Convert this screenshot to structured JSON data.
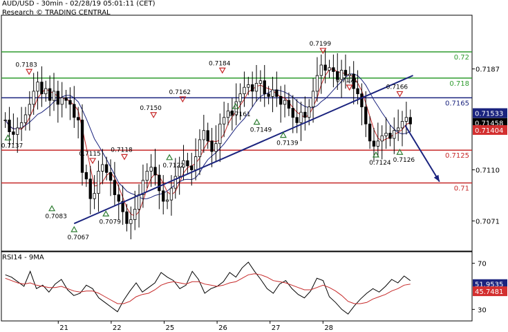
{
  "header": {
    "pair_line": "AUD/USD - 30min - 02/28/19 05:01:11 (CET)",
    "credit_line": "Research © TRADING CENTRAL"
  },
  "rsi_title": "RSI14 - 9MA",
  "chart_data": {
    "type": "line",
    "xlabel": "",
    "ylabel": "",
    "ylim": [
      0.7048,
      0.7228
    ],
    "x_ticks": [
      "21",
      "22",
      "25",
      "26",
      "27",
      "28"
    ],
    "y_ticks": [
      0.7187,
      0.711,
      0.7071
    ],
    "grid": false,
    "levels": [
      {
        "label": "0.72",
        "value": 0.72,
        "color": "#2e9b2e"
      },
      {
        "label": "0.718",
        "value": 0.718,
        "color": "#2e9b2e"
      },
      {
        "label": "0.7165",
        "value": 0.7165,
        "color": "#1a237e"
      },
      {
        "label": "0.7125",
        "value": 0.7125,
        "color": "#c62828"
      },
      {
        "label": "0.71",
        "value": 0.71,
        "color": "#c62828"
      }
    ],
    "price_badges": [
      {
        "label": "0.71533",
        "value": 0.71533,
        "color": "#1a237e"
      },
      {
        "label": "0.71458",
        "value": 0.71458,
        "color": "#000000"
      },
      {
        "label": "0.71404",
        "value": 0.71404,
        "color": "#d32f2f"
      }
    ],
    "swing_labels": [
      {
        "label": "0.7183",
        "x": 0.45,
        "y": 0.7183,
        "kind": "high"
      },
      {
        "label": "0.7137",
        "x": 0.05,
        "y": 0.7137,
        "kind": "low"
      },
      {
        "label": "0.7083",
        "x": 0.88,
        "y": 0.7083,
        "kind": "low"
      },
      {
        "label": "0.7067",
        "x": 1.3,
        "y": 0.7067,
        "kind": "low"
      },
      {
        "label": "0.7115",
        "x": 1.65,
        "y": 0.7115,
        "kind": "high"
      },
      {
        "label": "0.7079",
        "x": 1.9,
        "y": 0.7079,
        "kind": "low"
      },
      {
        "label": "0.7118",
        "x": 2.25,
        "y": 0.7118,
        "kind": "high"
      },
      {
        "label": "0.7150",
        "x": 2.8,
        "y": 0.715,
        "kind": "high"
      },
      {
        "label": "0.7122",
        "x": 3.1,
        "y": 0.7122,
        "kind": "low"
      },
      {
        "label": "0.7162",
        "x": 3.35,
        "y": 0.7162,
        "kind": "high"
      },
      {
        "label": "0.7184",
        "x": 4.1,
        "y": 0.7184,
        "kind": "high"
      },
      {
        "label": "0.7161",
        "x": 4.35,
        "y": 0.7161,
        "kind": "low"
      },
      {
        "label": "0.7149",
        "x": 4.75,
        "y": 0.7149,
        "kind": "low"
      },
      {
        "label": "0.7139",
        "x": 5.25,
        "y": 0.7139,
        "kind": "low"
      },
      {
        "label": "0.7199",
        "x": 6.0,
        "y": 0.7199,
        "kind": "high"
      },
      {
        "label": "0.7171",
        "x": 6.5,
        "y": 0.7171,
        "kind": "high"
      },
      {
        "label": "0.7166",
        "x": 7.45,
        "y": 0.7166,
        "kind": "high"
      },
      {
        "label": "0.7124",
        "x": 7.0,
        "y": 0.7124,
        "kind": "low"
      },
      {
        "label": "0.7126",
        "x": 7.45,
        "y": 0.7126,
        "kind": "low"
      }
    ],
    "trendline": [
      {
        "x": 1.3,
        "y": 0.7069
      },
      {
        "x": 7.7,
        "y": 0.7182
      }
    ],
    "forecast_arrow": [
      {
        "x": 7.55,
        "y": 0.7144
      },
      {
        "x": 8.2,
        "y": 0.7101
      }
    ],
    "x_range": [
      -0.1,
      8.75
    ],
    "x_tick_positions": [
      1.0,
      2.0,
      3.0,
      4.0,
      5.0,
      6.0
    ],
    "series": [
      {
        "type": "candlestick",
        "closes": [
          0.7148,
          0.7139,
          0.7137,
          0.7142,
          0.7146,
          0.7152,
          0.716,
          0.717,
          0.7177,
          0.7168,
          0.7172,
          0.7163,
          0.717,
          0.716,
          0.7165,
          0.7163,
          0.716,
          0.715,
          0.7148,
          0.7108,
          0.7103,
          0.7088,
          0.7092,
          0.7109,
          0.7114,
          0.7108,
          0.7102,
          0.7091,
          0.7086,
          0.7078,
          0.7069,
          0.7072,
          0.708,
          0.7091,
          0.7102,
          0.7109,
          0.7112,
          0.7106,
          0.7094,
          0.7086,
          0.7087,
          0.7096,
          0.7105,
          0.7112,
          0.7117,
          0.7113,
          0.711,
          0.712,
          0.7133,
          0.714,
          0.7132,
          0.7124,
          0.713,
          0.7145,
          0.715,
          0.7155,
          0.7152,
          0.7162,
          0.7168,
          0.7173,
          0.7175,
          0.717,
          0.7176,
          0.7178,
          0.7168,
          0.7166,
          0.7171,
          0.7166,
          0.716,
          0.7163,
          0.7157,
          0.715,
          0.7146,
          0.7154,
          0.715,
          0.7158,
          0.717,
          0.7182,
          0.719,
          0.7186,
          0.7188,
          0.7185,
          0.7179,
          0.7186,
          0.7182,
          0.7183,
          0.7172,
          0.7168,
          0.7158,
          0.7145,
          0.7132,
          0.7128,
          0.7132,
          0.7136,
          0.7138,
          0.7134,
          0.714,
          0.7142,
          0.7147,
          0.715,
          0.7145
        ],
        "x_start": 0.0,
        "x_end": 7.65
      },
      {
        "name": "",
        "type": "ma_fast",
        "color": "#c62828"
      },
      {
        "name": "",
        "type": "ma_slow",
        "color": "#1a237e"
      }
    ]
  },
  "rsi_chart": {
    "type": "line",
    "ylim": [
      20,
      80
    ],
    "y_ticks": [
      70,
      30
    ],
    "values": [
      60,
      58,
      54,
      50,
      63,
      48,
      51,
      45,
      52,
      56,
      47,
      42,
      44,
      51,
      48,
      40,
      36,
      32,
      28,
      38,
      46,
      53,
      45,
      49,
      53,
      62,
      58,
      55,
      48,
      51,
      63,
      56,
      44,
      48,
      50,
      54,
      62,
      58,
      66,
      71,
      63,
      56,
      48,
      44,
      52,
      55,
      48,
      43,
      40,
      46,
      57,
      55,
      41,
      36,
      30,
      26,
      33,
      39,
      44,
      48,
      45,
      50,
      56,
      53,
      59,
      55
    ],
    "ma_values": [
      57,
      55,
      53,
      52,
      53,
      51,
      50,
      49,
      49,
      50,
      48,
      46,
      45,
      46,
      46,
      44,
      41,
      38,
      35,
      35,
      37,
      41,
      43,
      44,
      47,
      51,
      53,
      54,
      53,
      52,
      54,
      54,
      52,
      51,
      50,
      51,
      53,
      54,
      57,
      60,
      61,
      60,
      58,
      55,
      54,
      53,
      51,
      49,
      47,
      47,
      49,
      51,
      49,
      46,
      42,
      37,
      35,
      35,
      36,
      39,
      41,
      43,
      46,
      48,
      51,
      52
    ],
    "current_badges": [
      {
        "label": "51.9535",
        "value": 51.9535,
        "color": "#1a237e"
      },
      {
        "label": "45.7481",
        "value": 45.7481,
        "color": "#d32f2f"
      }
    ]
  }
}
